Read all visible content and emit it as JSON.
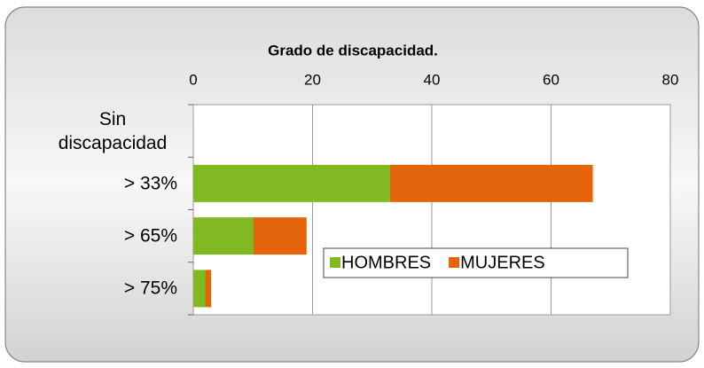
{
  "chart_data": {
    "type": "bar",
    "orientation": "horizontal",
    "stacked": true,
    "title": "Grado de discapacidad.",
    "categories": [
      "Sin discapacidad",
      "> 33%",
      "> 65%",
      "> 75%"
    ],
    "series": [
      {
        "name": "HOMBRES",
        "color": "#80b921",
        "values": [
          0,
          33,
          10,
          2
        ]
      },
      {
        "name": "MUJERES",
        "color": "#e4640b",
        "values": [
          0,
          34,
          9,
          1
        ]
      }
    ],
    "xlim": [
      0,
      80
    ],
    "xticks": [
      0,
      20,
      40,
      60,
      80
    ],
    "grid": true
  }
}
